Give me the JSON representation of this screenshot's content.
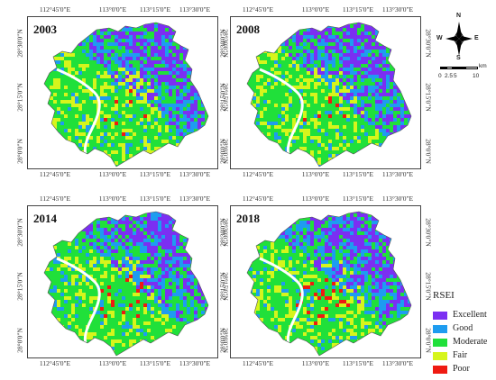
{
  "coords": {
    "lon": [
      "112°45'0\"E",
      "113°0'0\"E",
      "113°15'0\"E",
      "113°30'0\"E"
    ],
    "lat": [
      "28°30'0\"N",
      "28°15'0\"N",
      "28°0'0\"N"
    ]
  },
  "maps": [
    {
      "year": "2003"
    },
    {
      "year": "2008"
    },
    {
      "year": "2014"
    },
    {
      "year": "2018"
    }
  ],
  "compass": {
    "n": "N",
    "s": "S",
    "e": "E",
    "w": "W"
  },
  "scale": {
    "ticks": [
      "0",
      "2.5",
      "5",
      "10"
    ],
    "unit": "km"
  },
  "legend": {
    "title": "RSEI",
    "items": [
      {
        "label": "Excellent",
        "color": "#7b2ff2"
      },
      {
        "label": "Good",
        "color": "#1e9cf0"
      },
      {
        "label": "Moderate",
        "color": "#20e03a"
      },
      {
        "label": "Fair",
        "color": "#d6f51c"
      },
      {
        "label": "Poor",
        "color": "#ef1a12"
      }
    ]
  }
}
